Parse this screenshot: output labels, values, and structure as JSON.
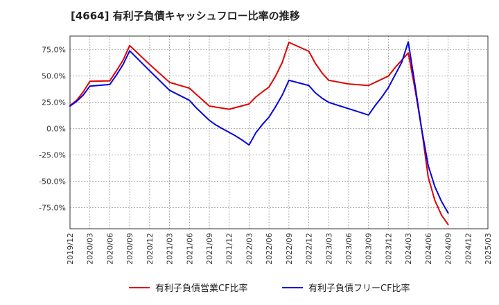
{
  "title": "[4664]  有利子負債キャッシュフロー比率の推移",
  "chart_data": {
    "type": "line",
    "x": [
      "2019/12",
      "2020/03",
      "2020/06",
      "2020/09",
      "2020/12",
      "2021/03",
      "2021/06",
      "2021/09",
      "2021/12",
      "2022/03",
      "2022/06",
      "2022/09",
      "2022/12",
      "2023/03",
      "2023/06",
      "2023/09",
      "2023/12",
      "2024/03",
      "2024/06",
      "2024/09",
      "2024/12",
      "2025/03"
    ],
    "x_labels": [
      "2019/12",
      "2020/03",
      "2020/06",
      "2020/09",
      "2020/12",
      "2021/03",
      "2021/06",
      "2021/09",
      "2021/12",
      "2022/03",
      "2022/06",
      "2022/09",
      "2022/12",
      "2023/03",
      "2023/06",
      "2023/09",
      "2023/12",
      "2024/03",
      "2024/06",
      "2024/09",
      "2024/12",
      "2025/03"
    ],
    "y_ticks": [
      -75,
      -50,
      -25,
      0,
      25,
      50,
      75
    ],
    "y_tick_labels": [
      "-75.0%",
      "-50.0%",
      "-25.0%",
      "0.0%",
      "25.0%",
      "50.0%",
      "75.0%"
    ],
    "ylim": [
      -95,
      88
    ],
    "grid": true,
    "legend_position": "bottom",
    "series": [
      {
        "name": "有利子負債営業CF比率",
        "color": "#e00000",
        "points": [
          [
            "2019/12",
            22
          ],
          [
            "2020/01",
            27
          ],
          [
            "2020/02",
            35
          ],
          [
            "2020/03",
            45
          ],
          [
            "2020/06",
            45.5
          ],
          [
            "2020/07",
            55
          ],
          [
            "2020/08",
            65
          ],
          [
            "2020/09",
            79
          ],
          [
            "2020/12",
            61
          ],
          [
            "2021/03",
            44
          ],
          [
            "2021/06",
            38.5
          ],
          [
            "2021/09",
            21.5
          ],
          [
            "2021/12",
            18.5
          ],
          [
            "2022/03",
            23.5
          ],
          [
            "2022/04",
            30
          ],
          [
            "2022/05",
            35
          ],
          [
            "2022/06",
            39.5
          ],
          [
            "2022/07",
            50
          ],
          [
            "2022/08",
            63
          ],
          [
            "2022/09",
            82
          ],
          [
            "2022/12",
            73.5
          ],
          [
            "2023/01",
            62
          ],
          [
            "2023/02",
            53
          ],
          [
            "2023/03",
            46
          ],
          [
            "2023/06",
            42.5
          ],
          [
            "2023/09",
            41
          ],
          [
            "2023/12",
            50
          ],
          [
            "2024/01",
            58
          ],
          [
            "2024/02",
            65
          ],
          [
            "2024/03",
            72
          ],
          [
            "2024/04",
            38
          ],
          [
            "2024/05",
            0
          ],
          [
            "2024/06",
            -46
          ],
          [
            "2024/07",
            -68
          ],
          [
            "2024/08",
            -82
          ],
          [
            "2024/09",
            -91
          ]
        ]
      },
      {
        "name": "有利子負債フリーCF比率",
        "color": "#0000e0",
        "points": [
          [
            "2019/12",
            21.5
          ],
          [
            "2020/01",
            26
          ],
          [
            "2020/02",
            32
          ],
          [
            "2020/03",
            40.5
          ],
          [
            "2020/06",
            42
          ],
          [
            "2020/07",
            51
          ],
          [
            "2020/08",
            61
          ],
          [
            "2020/09",
            74
          ],
          [
            "2020/12",
            55
          ],
          [
            "2021/03",
            36.5
          ],
          [
            "2021/06",
            27
          ],
          [
            "2021/07",
            20
          ],
          [
            "2021/08",
            14
          ],
          [
            "2021/09",
            8
          ],
          [
            "2021/10",
            3.5
          ],
          [
            "2021/11",
            0
          ],
          [
            "2021/12",
            -3.5
          ],
          [
            "2022/01",
            -7
          ],
          [
            "2022/02",
            -11
          ],
          [
            "2022/03",
            -15.5
          ],
          [
            "2022/04",
            -4
          ],
          [
            "2022/05",
            4
          ],
          [
            "2022/06",
            11
          ],
          [
            "2022/07",
            21
          ],
          [
            "2022/08",
            32
          ],
          [
            "2022/09",
            46
          ],
          [
            "2022/12",
            41
          ],
          [
            "2023/01",
            34
          ],
          [
            "2023/02",
            29
          ],
          [
            "2023/03",
            25
          ],
          [
            "2023/06",
            19
          ],
          [
            "2023/09",
            13
          ],
          [
            "2023/10",
            22
          ],
          [
            "2023/11",
            30
          ],
          [
            "2023/12",
            39
          ],
          [
            "2024/01",
            51
          ],
          [
            "2024/02",
            63
          ],
          [
            "2024/03",
            82.5
          ],
          [
            "2024/04",
            42
          ],
          [
            "2024/05",
            0
          ],
          [
            "2024/06",
            -35
          ],
          [
            "2024/07",
            -55
          ],
          [
            "2024/08",
            -69
          ],
          [
            "2024/09",
            -80
          ]
        ]
      }
    ]
  }
}
